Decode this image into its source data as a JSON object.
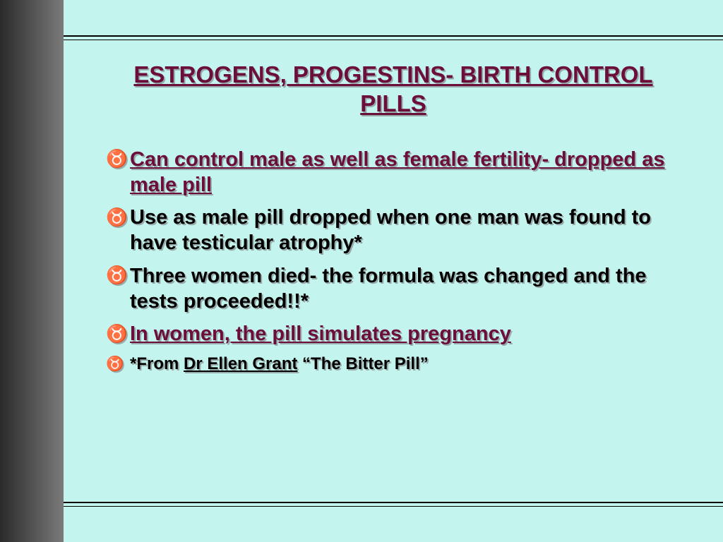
{
  "slide": {
    "background_color": "#c3f5ee",
    "sidebar_gradient_from": "#2a2a2a",
    "sidebar_gradient_to": "#7a7a7a",
    "accent_color": "#6b0f3a",
    "body_color": "#000000",
    "shadow_color": "#99aaaa",
    "title": "ESTROGENS, PROGESTINS- BIRTH CONTROL PILLS",
    "bullet_glyph": "♉",
    "bullets": [
      {
        "text": "Can control male as well as female fertility- dropped as male pill",
        "style": "accent-underline",
        "size": "normal"
      },
      {
        "text": "Use as male pill dropped when one man was found to have testicular atrophy*",
        "style": "body",
        "size": "normal"
      },
      {
        "text": "Three women died- the formula was changed and the tests proceeded!!*",
        "style": "body",
        "size": "normal"
      },
      {
        "text": "In women, the pill simulates pregnancy",
        "style": "accent-underline",
        "size": "normal"
      },
      {
        "text": "",
        "style": "citation",
        "size": "small",
        "parts": {
          "prefix": "*From ",
          "author": "Dr Ellen Grant",
          "suffix": " “The Bitter Pill”"
        }
      }
    ]
  }
}
